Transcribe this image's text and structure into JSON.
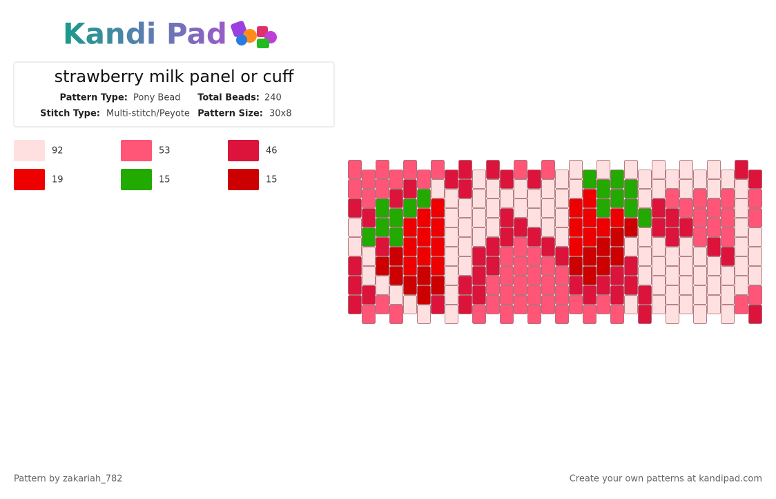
{
  "header": {
    "logo": "Kandi Pad"
  },
  "pattern": {
    "title": "strawberry milk panel or cuff",
    "fields": [
      {
        "label": "Pattern Type:",
        "value": "Pony Bead"
      },
      {
        "label": "Total Beads:",
        "value": "240"
      },
      {
        "label": "Stitch Type:",
        "value": "Multi-stitch/Peyote"
      },
      {
        "label": "Pattern Size:",
        "value": "30x8"
      }
    ]
  },
  "legend": [
    {
      "color": "#ffe0e0",
      "count": 92
    },
    {
      "color": "#ff5577",
      "count": 53
    },
    {
      "color": "#dc143c",
      "count": 46
    },
    {
      "color": "#ee0000",
      "count": 19
    },
    {
      "color": "#22aa00",
      "count": 15
    },
    {
      "color": "#cc0000",
      "count": 15
    }
  ],
  "footer": {
    "author": "Pattern by zakariah_782",
    "promo": "Create your own patterns at kandipad.com"
  }
}
